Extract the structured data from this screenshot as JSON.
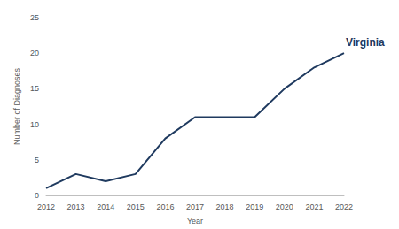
{
  "chart_data": {
    "type": "line",
    "x_label": "Year",
    "y_label": "Number of Diagnoses",
    "categories": [
      "2012",
      "2013",
      "2014",
      "2015",
      "2016",
      "2017",
      "2018",
      "2019",
      "2020",
      "2021",
      "2022"
    ],
    "series": [
      {
        "name": "Virginia",
        "color": "#1f3a5f",
        "values": [
          1,
          3,
          2,
          3,
          8,
          11,
          11,
          11,
          15,
          18,
          20
        ]
      }
    ],
    "ylim": [
      0,
      25
    ],
    "yticks": [
      0,
      5,
      10,
      15,
      20,
      25
    ],
    "grid": false
  }
}
